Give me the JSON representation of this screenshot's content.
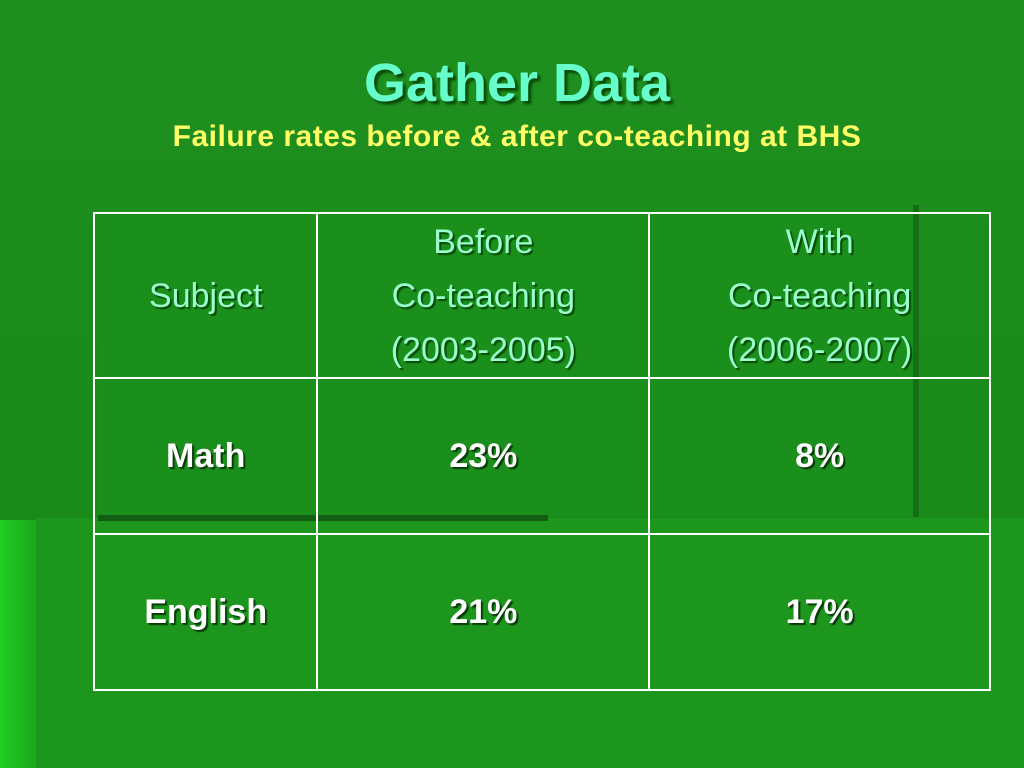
{
  "header": {
    "title": "Gather Data",
    "subtitle": "Failure rates before & after co-teaching at BHS"
  },
  "table": {
    "columns": [
      [
        "Subject"
      ],
      [
        "Before",
        "Co-teaching",
        "(2003-2005)"
      ],
      [
        "With",
        "Co-teaching",
        "(2006-2007)"
      ]
    ],
    "rows": [
      [
        "Math",
        "23%",
        "8%"
      ],
      [
        "English",
        "21%",
        "17%"
      ]
    ]
  }
}
